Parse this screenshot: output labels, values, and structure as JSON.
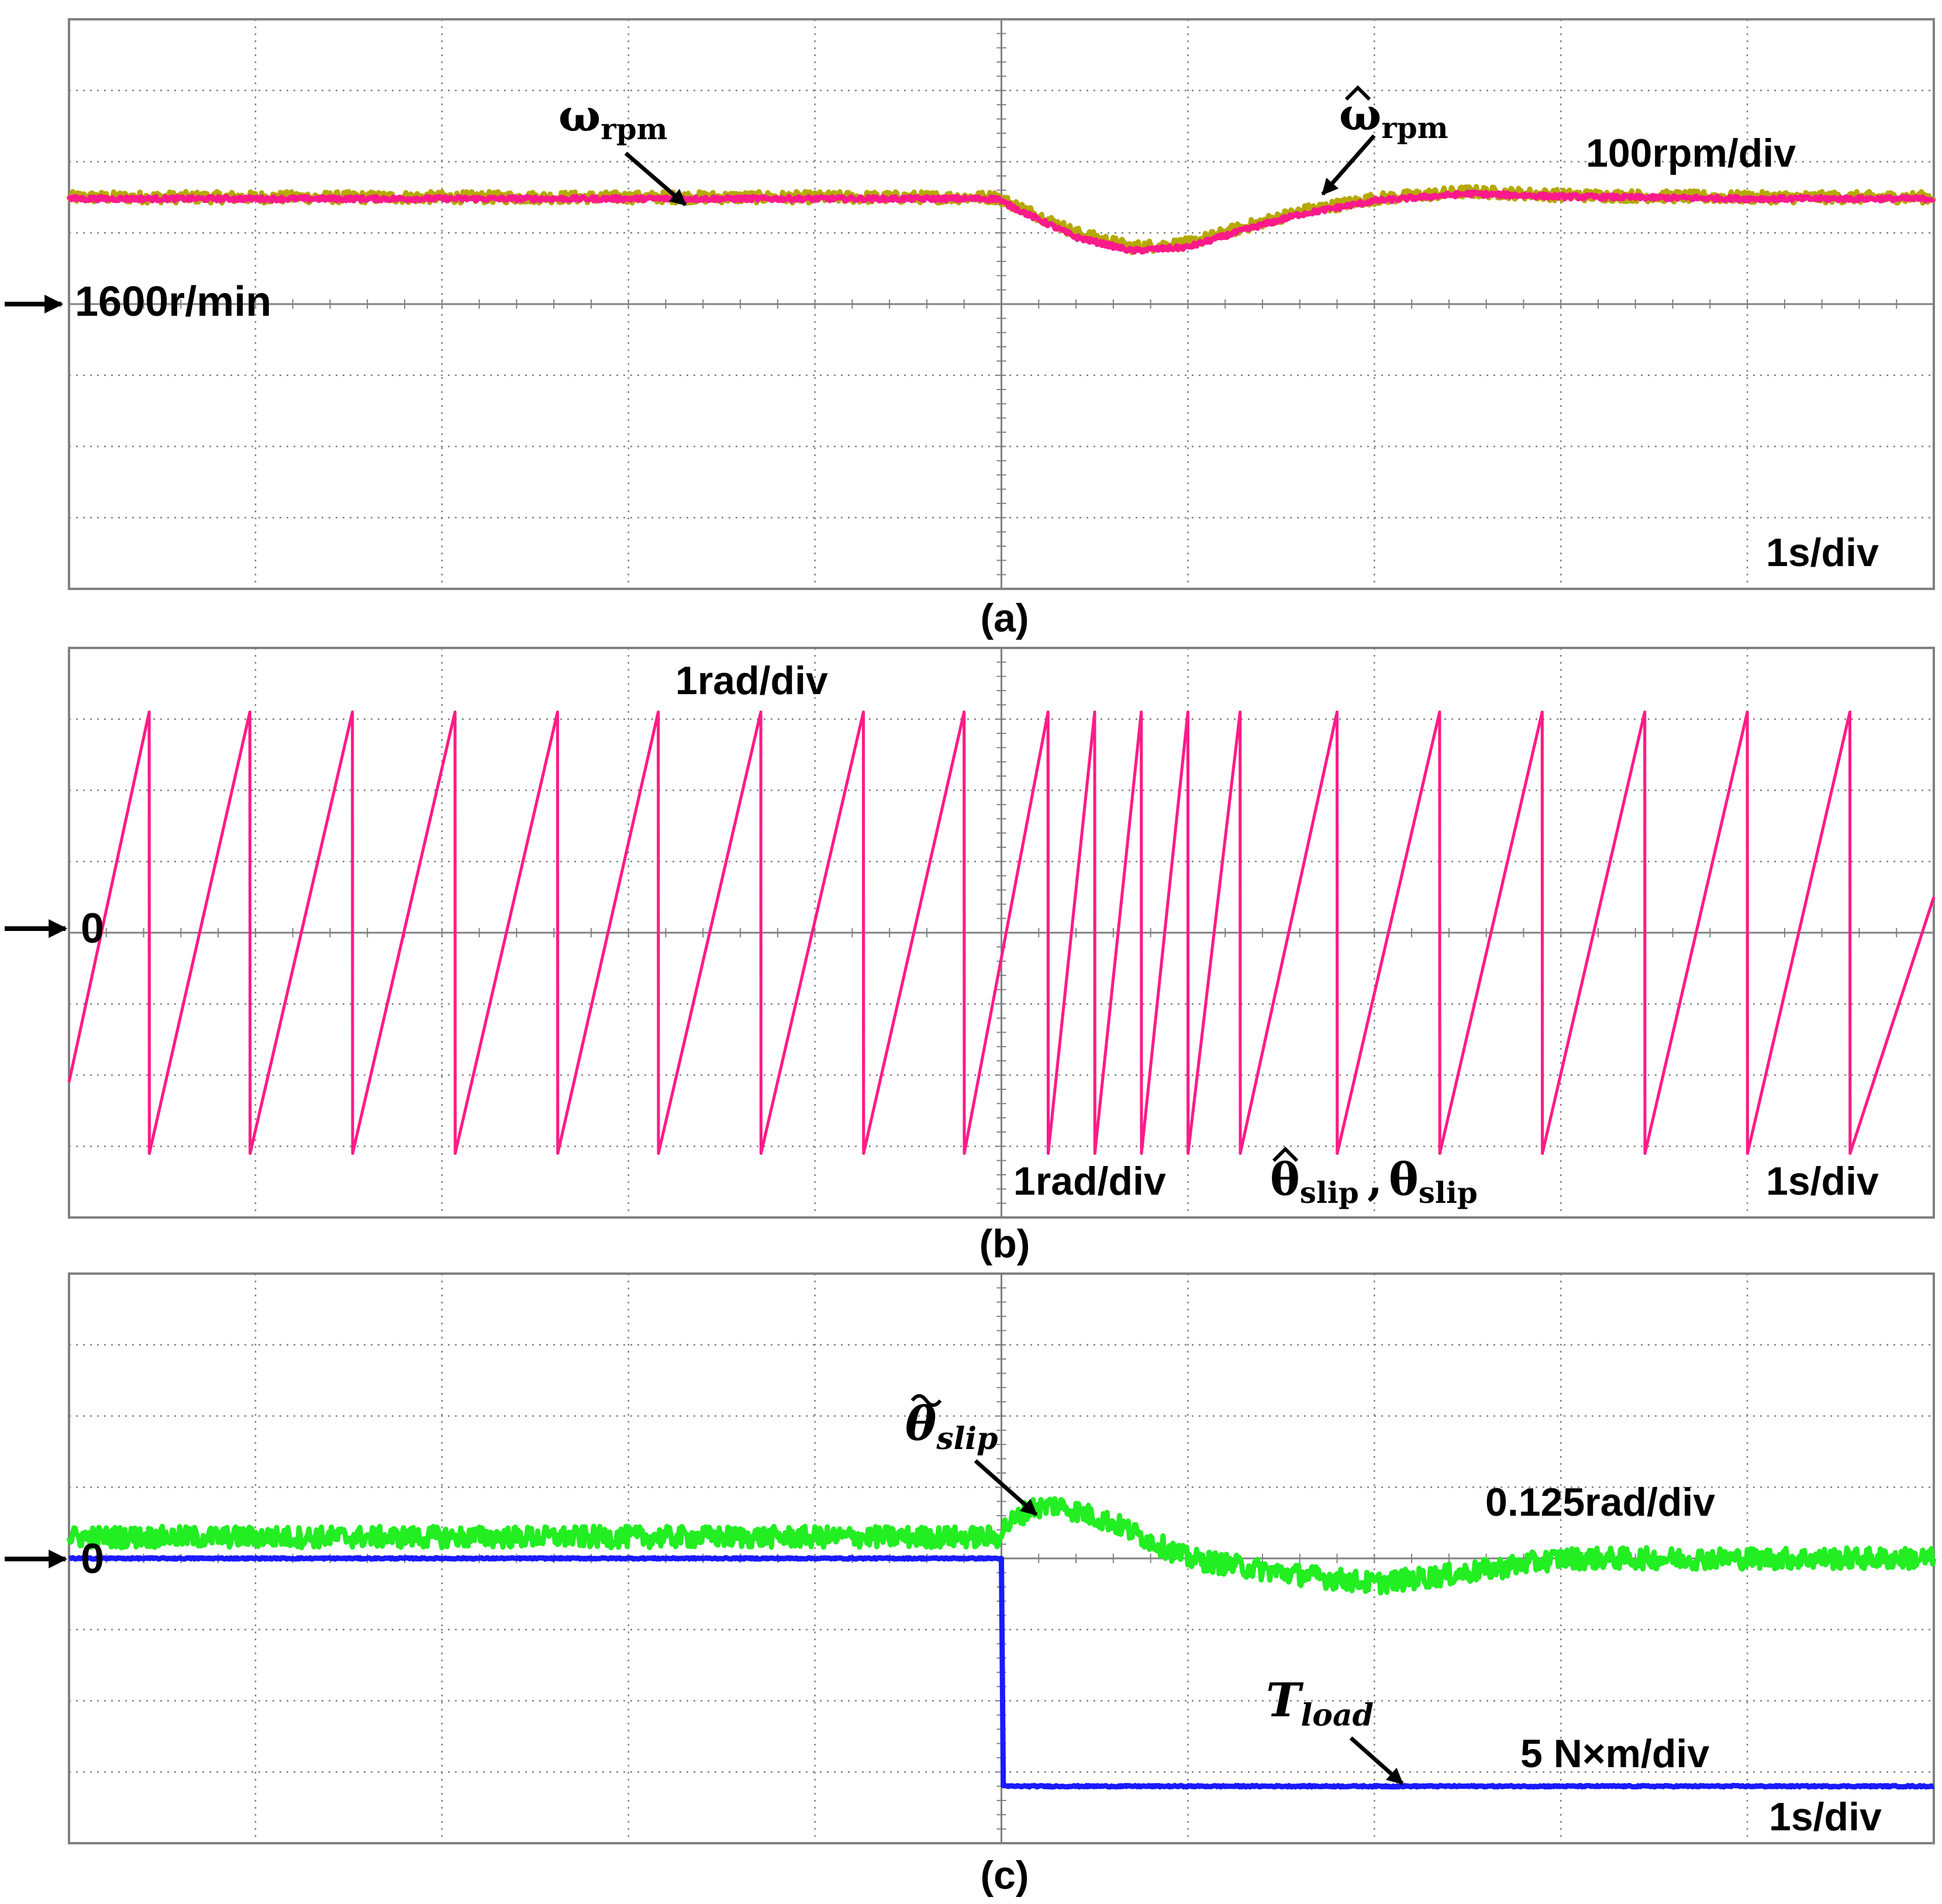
{
  "figure": {
    "background_color": "#ffffff",
    "grid_color": "#808080",
    "frame_color": "#808080"
  },
  "chart_data": [
    {
      "panel": "(a)",
      "type": "line",
      "x_divisions": 10,
      "y_divisions": 8,
      "grid": true,
      "x_scale_label": "1s/div",
      "x_unit": "s",
      "y_scale_label": "100rpm/div",
      "y_unit": "r/min",
      "reference_label": "1600r/min",
      "reference_value": 1600,
      "x_range": [
        0,
        10
      ],
      "y_range": [
        1200,
        2000
      ],
      "series": [
        {
          "name": "ω_rpm",
          "label_main": "ω",
          "label_sub": "rpm",
          "color": "#b5a800",
          "noise": 8,
          "x": [
            0,
            1,
            2,
            3,
            4,
            4.99,
            5.0,
            5.15,
            5.4,
            5.7,
            6.0,
            6.3,
            6.6,
            7.0,
            7.5,
            8,
            9,
            10
          ],
          "y": [
            1750,
            1750,
            1750,
            1750,
            1750,
            1750,
            1747,
            1730,
            1700,
            1680,
            1685,
            1708,
            1730,
            1748,
            1758,
            1753,
            1750,
            1750
          ]
        },
        {
          "name": "ω̂_rpm",
          "label_main": "ω",
          "label_sub": "rpm",
          "color": "#ff1a8c",
          "noise": 3,
          "x": [
            0,
            1,
            2,
            3,
            4,
            4.99,
            5.0,
            5.15,
            5.4,
            5.7,
            6.0,
            6.3,
            6.6,
            7.0,
            7.5,
            8,
            9,
            10
          ],
          "y": [
            1748,
            1748,
            1748,
            1748,
            1748,
            1748,
            1744,
            1725,
            1694,
            1675,
            1680,
            1704,
            1726,
            1745,
            1755,
            1751,
            1748,
            1748
          ]
        }
      ]
    },
    {
      "panel": "(b)",
      "type": "line",
      "x_divisions": 10,
      "y_divisions": 8,
      "grid": true,
      "x_scale_label": "1s/div",
      "x_unit": "s",
      "y_scale_label": "1rad/div",
      "y_scale_label_2": "1rad/div",
      "y_unit": "rad",
      "reference_label": "0",
      "reference_value": 0,
      "x_range": [
        0,
        10
      ],
      "y_range": [
        -4,
        4
      ],
      "series": [
        {
          "name": "θ̂_slip",
          "label_main": "θ",
          "label_sub": "slip",
          "color": "#d9a300",
          "noise": 0,
          "x": [
            0,
            0.43,
            0.431,
            0.97,
            0.971,
            1.52,
            1.521,
            2.07,
            2.071,
            2.62,
            2.621,
            3.16,
            3.161,
            3.71,
            3.711,
            4.26,
            4.261,
            4.8,
            4.801,
            5.25,
            5.251,
            5.5,
            5.501,
            5.75,
            5.751,
            6.0,
            6.001,
            6.28,
            6.281,
            6.8,
            6.801,
            7.35,
            7.351,
            7.9,
            7.901,
            8.45,
            8.451,
            9.0,
            9.001,
            9.55,
            9.551,
            10
          ],
          "y": [
            -2.1,
            3.1,
            -3.1,
            3.1,
            -3.1,
            3.1,
            -3.1,
            3.1,
            -3.1,
            3.1,
            -3.1,
            3.1,
            -3.1,
            3.1,
            -3.1,
            3.1,
            -3.1,
            3.1,
            -3.1,
            3.1,
            -3.1,
            3.1,
            -3.1,
            3.1,
            -3.1,
            3.1,
            -3.1,
            3.1,
            -3.1,
            3.1,
            -3.1,
            3.1,
            -3.1,
            3.1,
            -3.1,
            3.1,
            -3.1,
            3.1,
            -3.1,
            3.1,
            -3.1,
            0.5
          ]
        },
        {
          "name": "θ_slip",
          "label_main": "θ",
          "label_sub": "slip",
          "color": "#ff1a8c",
          "noise": 0,
          "x": [
            0,
            0.43,
            0.431,
            0.97,
            0.971,
            1.52,
            1.521,
            2.07,
            2.071,
            2.62,
            2.621,
            3.16,
            3.161,
            3.71,
            3.711,
            4.26,
            4.261,
            4.8,
            4.801,
            5.25,
            5.251,
            5.5,
            5.501,
            5.75,
            5.751,
            6.0,
            6.001,
            6.28,
            6.281,
            6.8,
            6.801,
            7.35,
            7.351,
            7.9,
            7.901,
            8.45,
            8.451,
            9.0,
            9.001,
            9.55,
            9.551,
            10
          ],
          "y": [
            -2.1,
            3.1,
            -3.1,
            3.1,
            -3.1,
            3.1,
            -3.1,
            3.1,
            -3.1,
            3.1,
            -3.1,
            3.1,
            -3.1,
            3.1,
            -3.1,
            3.1,
            -3.1,
            3.1,
            -3.1,
            3.1,
            -3.1,
            3.1,
            -3.1,
            3.1,
            -3.1,
            3.1,
            -3.1,
            3.1,
            -3.1,
            3.1,
            -3.1,
            3.1,
            -3.1,
            3.1,
            -3.1,
            3.1,
            -3.1,
            3.1,
            -3.1,
            3.1,
            -3.1,
            0.5
          ]
        }
      ]
    },
    {
      "panel": "(c)",
      "type": "line",
      "x_divisions": 10,
      "y_divisions": 8,
      "grid": true,
      "x_scale_label": "1s/div",
      "x_unit": "s",
      "y_scale_label": "0.125rad/div",
      "y_scale_label_2": "5 N×m/div",
      "reference_label": "0",
      "reference_value": 0,
      "x_range": [
        0,
        10
      ],
      "y_range": [
        -4,
        4
      ],
      "series": [
        {
          "name": "θ̃_slip",
          "label_main": "θ",
          "label_sub": "slip",
          "unit": "rad (0.125 rad/div)",
          "color": "#22ee22",
          "noise": 0.15,
          "x": [
            0,
            1,
            2,
            3,
            4,
            4.99,
            5.0,
            5.15,
            5.3,
            5.6,
            6.0,
            6.5,
            7.0,
            7.5,
            8,
            9,
            10
          ],
          "y": [
            0.3,
            0.3,
            0.3,
            0.3,
            0.3,
            0.3,
            0.4,
            0.7,
            0.75,
            0.5,
            0.0,
            -0.2,
            -0.35,
            -0.2,
            0.0,
            0.0,
            0.0
          ]
        },
        {
          "name": "T_load",
          "label_main": "T",
          "label_sub": "load",
          "unit": "N·m (5 N·m/div)",
          "color": "#1a1aff",
          "noise": 0.01,
          "x": [
            0,
            5.0,
            5.01,
            10
          ],
          "y": [
            0,
            0,
            -3.2,
            -3.2
          ]
        }
      ]
    }
  ]
}
